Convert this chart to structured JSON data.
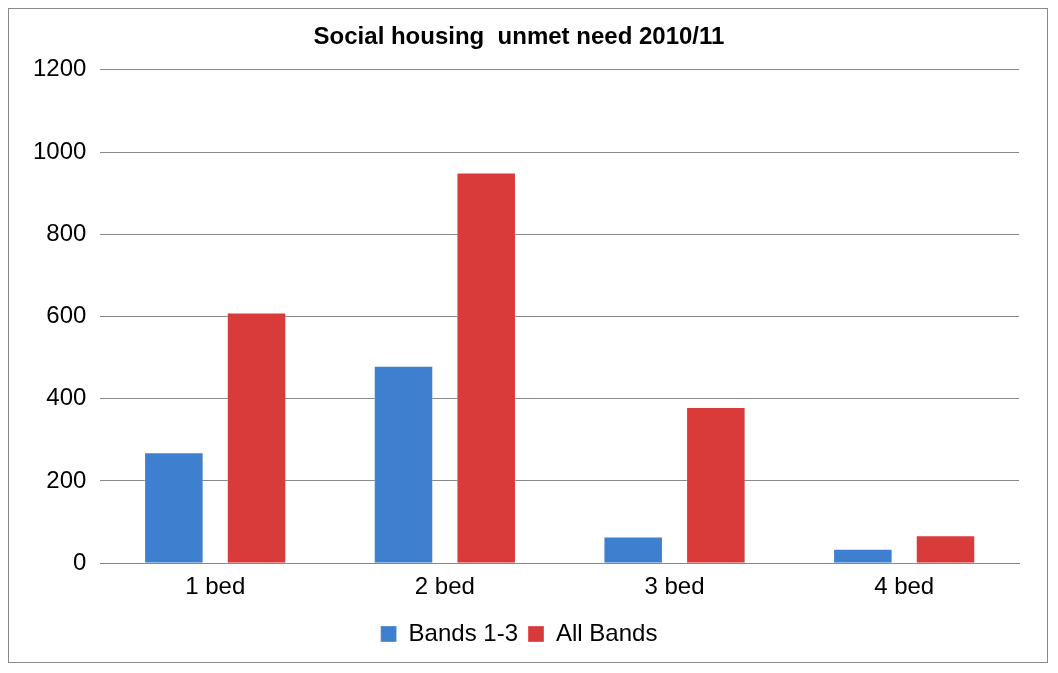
{
  "chart_data": {
    "type": "bar",
    "title": "Social housing  unmet need 2010/11",
    "categories": [
      "1 bed",
      "2 bed",
      "3 bed",
      "4 bed"
    ],
    "series": [
      {
        "name": "Bands 1-3",
        "color": "#3f7fcf",
        "values": [
          270,
          480,
          65,
          35
        ]
      },
      {
        "name": "All Bands",
        "color": "#d93a3a",
        "values": [
          610,
          950,
          380,
          68
        ]
      }
    ],
    "ylim": [
      0,
      1200
    ],
    "yticks": [
      0,
      200,
      400,
      600,
      800,
      1000,
      1200
    ],
    "grid": "y",
    "legend": "bottom"
  }
}
